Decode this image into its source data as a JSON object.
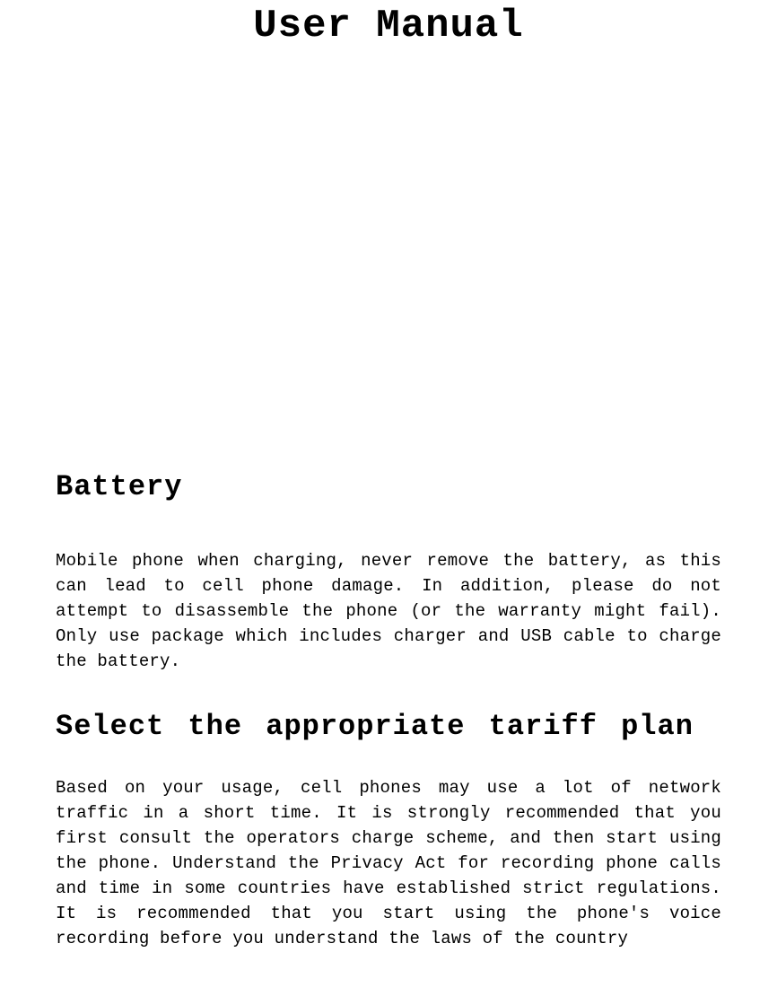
{
  "document": {
    "title": "User Manual",
    "sections": [
      {
        "heading": "Battery",
        "body": "Mobile phone when charging, never remove the battery, as this can lead to cell phone damage. In addition, please do not attempt to disassemble the phone (or the warranty might fail).  Only use package which includes charger and USB cable to charge the battery."
      },
      {
        "heading": "Select the appropriate tariff plan",
        "body": "Based on your usage, cell phones may use a lot of network traffic in a short time. It is strongly recommended that you first consult the operators charge scheme, and then start using the phone. Understand the Privacy Act for recording phone calls and time in some countries have established strict regulations. It is recommended that you start using the phone's voice recording before you understand the laws of the country"
      }
    ],
    "colors": {
      "background": "#ffffff",
      "text": "#000000"
    },
    "typography": {
      "title_fontsize": 44,
      "heading_fontsize": 32,
      "body_fontsize": 19,
      "body_lineheight": 28,
      "font_family": "monospace-serif"
    }
  }
}
